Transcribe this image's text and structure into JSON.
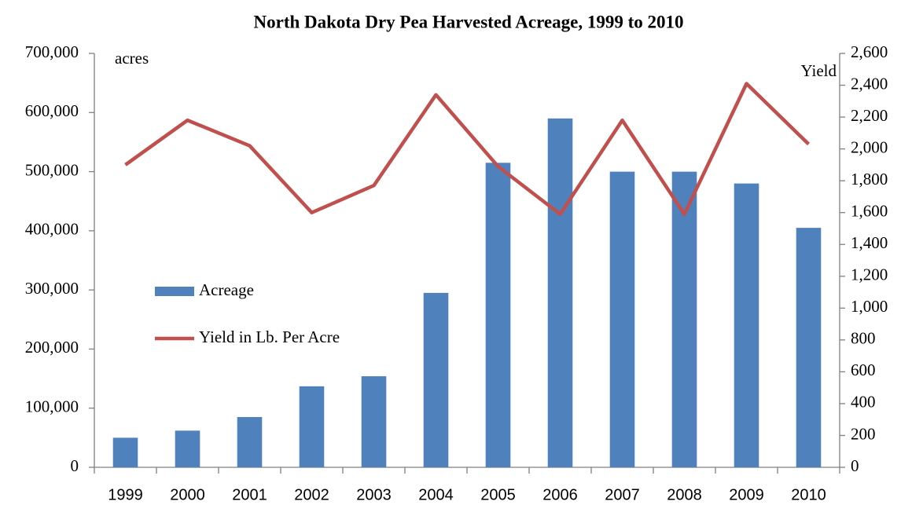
{
  "chart_data": {
    "type": "bar_line",
    "title": "North Dakota Dry Pea Harvested Acreage, 1999 to 2010",
    "annotations": [
      "acres",
      "Yield"
    ],
    "categories": [
      "1999",
      "2000",
      "2001",
      "2002",
      "2003",
      "2004",
      "2005",
      "2006",
      "2007",
      "2008",
      "2009",
      "2010"
    ],
    "series": [
      {
        "name": "Acreage",
        "type": "bar",
        "color": "#4f81bd",
        "values": [
          50000,
          62000,
          85000,
          137000,
          154000,
          295000,
          515000,
          590000,
          500000,
          500000,
          480000,
          405000
        ]
      },
      {
        "name": "Yield in Lb. Per Acre",
        "type": "line",
        "axis": "y2",
        "color": "#c0504d",
        "values": [
          1900,
          2180,
          2020,
          1600,
          1770,
          2340,
          1890,
          1590,
          2180,
          1590,
          2410,
          2030
        ]
      }
    ],
    "ylim": [
      0,
      700000
    ],
    "yticks": [
      0,
      {
        "value": 100000,
        "label": "100,000"
      },
      {
        "value": 200000,
        "label": "200,000"
      },
      {
        "value": 300000,
        "label": "300,000"
      },
      {
        "value": 400000,
        "label": "400,000"
      },
      {
        "value": 500000,
        "label": "500,000"
      },
      {
        "value": 600000,
        "label": "600,000"
      },
      {
        "value": 700000,
        "label": "700,000"
      }
    ],
    "y2lim": [
      0,
      2600
    ],
    "y2ticks": [
      0,
      200,
      400,
      600,
      800,
      {
        "value": 1000,
        "label": "1,000"
      },
      {
        "value": 1200,
        "label": "1,200"
      },
      {
        "value": 1400,
        "label": "1,400"
      },
      {
        "value": 1600,
        "label": "1,600"
      },
      {
        "value": 1800,
        "label": "1,800"
      },
      {
        "value": 2000,
        "label": "2,000"
      },
      {
        "value": 2200,
        "label": "2,200"
      },
      {
        "value": 2400,
        "label": "2,400"
      },
      {
        "value": 2600,
        "label": "2,600"
      }
    ],
    "grid": false,
    "legend": "left"
  }
}
